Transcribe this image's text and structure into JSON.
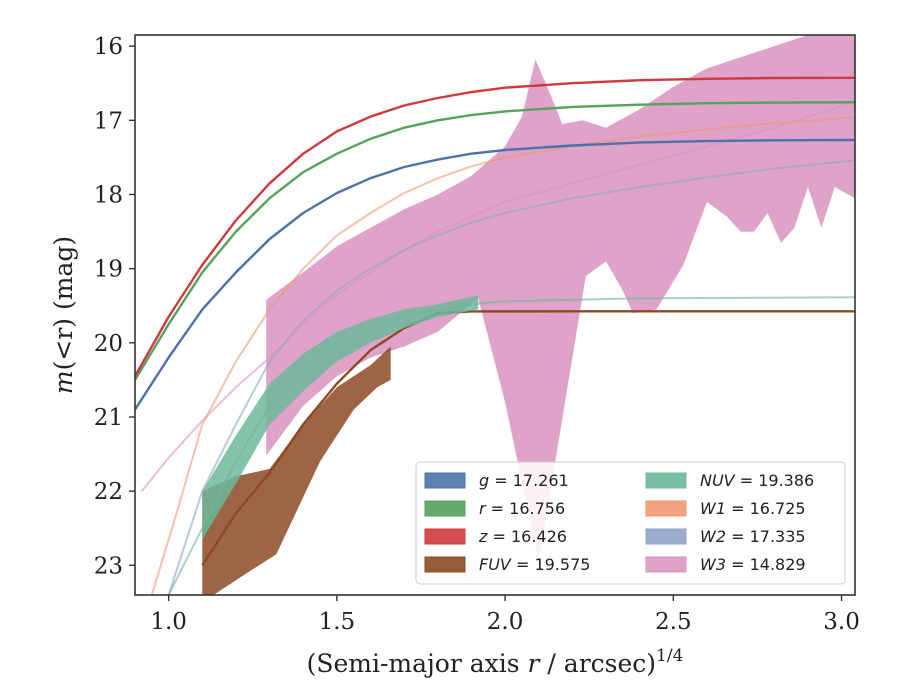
{
  "chart_data": {
    "type": "area",
    "xlabel_main": "(Semi-major axis ",
    "xlabel_var": "r",
    "xlabel_unit": " / arcsec)",
    "xlabel_exp": "1/4",
    "ylabel_main": "m",
    "ylabel_args": "(<r)",
    "ylabel_unit": " (mag)",
    "xlim": [
      0.9,
      3.04
    ],
    "ylim": [
      23.4,
      15.85
    ],
    "y_inverted": true,
    "xticks": [
      1.0,
      1.5,
      2.0,
      2.5,
      3.0
    ],
    "xtick_labels": [
      "1.0",
      "1.5",
      "2.0",
      "2.5",
      "3.0"
    ],
    "yticks": [
      16,
      17,
      18,
      19,
      20,
      21,
      22,
      23
    ],
    "ytick_labels": [
      "16",
      "17",
      "18",
      "19",
      "20",
      "21",
      "22",
      "23"
    ],
    "grid": false,
    "legend_position": "lower-right",
    "series": [
      {
        "name": "g = 17.261",
        "band": "g",
        "mag": "17.261",
        "color": "#4c72a8",
        "curve": [
          [
            0.9,
            20.9
          ],
          [
            1.0,
            20.2
          ],
          [
            1.1,
            19.55
          ],
          [
            1.2,
            19.05
          ],
          [
            1.3,
            18.6
          ],
          [
            1.4,
            18.25
          ],
          [
            1.5,
            17.98
          ],
          [
            1.6,
            17.78
          ],
          [
            1.7,
            17.63
          ],
          [
            1.8,
            17.53
          ],
          [
            1.9,
            17.45
          ],
          [
            2.0,
            17.4
          ],
          [
            2.2,
            17.34
          ],
          [
            2.4,
            17.3
          ],
          [
            2.6,
            17.28
          ],
          [
            2.8,
            17.27
          ],
          [
            3.04,
            17.265
          ]
        ]
      },
      {
        "name": "r = 16.756",
        "band": "r",
        "mag": "16.756",
        "color": "#55a25c",
        "curve": [
          [
            0.9,
            20.5
          ],
          [
            1.0,
            19.75
          ],
          [
            1.1,
            19.05
          ],
          [
            1.2,
            18.5
          ],
          [
            1.3,
            18.05
          ],
          [
            1.4,
            17.7
          ],
          [
            1.5,
            17.45
          ],
          [
            1.6,
            17.25
          ],
          [
            1.7,
            17.1
          ],
          [
            1.8,
            17.0
          ],
          [
            1.9,
            16.93
          ],
          [
            2.0,
            16.88
          ],
          [
            2.2,
            16.82
          ],
          [
            2.4,
            16.79
          ],
          [
            2.6,
            16.77
          ],
          [
            2.8,
            16.762
          ],
          [
            3.04,
            16.758
          ]
        ]
      },
      {
        "name": "z = 16.426",
        "band": "z",
        "mag": "16.426",
        "color": "#d03a3e",
        "curve": [
          [
            0.9,
            20.45
          ],
          [
            1.0,
            19.65
          ],
          [
            1.1,
            18.95
          ],
          [
            1.2,
            18.35
          ],
          [
            1.3,
            17.85
          ],
          [
            1.4,
            17.45
          ],
          [
            1.5,
            17.15
          ],
          [
            1.6,
            16.95
          ],
          [
            1.7,
            16.8
          ],
          [
            1.8,
            16.7
          ],
          [
            1.9,
            16.62
          ],
          [
            2.0,
            16.56
          ],
          [
            2.2,
            16.5
          ],
          [
            2.4,
            16.46
          ],
          [
            2.6,
            16.44
          ],
          [
            2.8,
            16.43
          ],
          [
            3.04,
            16.427
          ]
        ]
      },
      {
        "name": "FUV = 19.575",
        "band": "FUV",
        "mag": "19.575",
        "color": "#8c4a22",
        "curve": [
          [
            1.1,
            23.0
          ],
          [
            1.2,
            22.3
          ],
          [
            1.3,
            21.75
          ],
          [
            1.4,
            21.1
          ],
          [
            1.5,
            20.55
          ],
          [
            1.6,
            20.1
          ],
          [
            1.7,
            19.8
          ],
          [
            1.8,
            19.6
          ],
          [
            1.9,
            19.577
          ],
          [
            2.2,
            19.575
          ],
          [
            3.04,
            19.575
          ]
        ],
        "band_upper": [
          [
            1.1,
            22.0
          ],
          [
            1.2,
            21.8
          ],
          [
            1.3,
            21.7
          ],
          [
            1.4,
            21.1
          ],
          [
            1.5,
            20.6
          ],
          [
            1.6,
            20.3
          ],
          [
            1.66,
            20.05
          ]
        ],
        "band_lower": [
          [
            1.1,
            23.5
          ],
          [
            1.2,
            23.2
          ],
          [
            1.32,
            22.85
          ],
          [
            1.45,
            21.6
          ],
          [
            1.55,
            20.9
          ],
          [
            1.62,
            20.6
          ],
          [
            1.66,
            20.5
          ]
        ]
      },
      {
        "name": "NUV = 19.386",
        "band": "NUV",
        "mag": "19.386",
        "color": "#6cb89a",
        "curve": [
          [
            1.0,
            23.4
          ],
          [
            1.1,
            22.5
          ],
          [
            1.2,
            21.6
          ],
          [
            1.3,
            20.85
          ],
          [
            1.4,
            20.4
          ],
          [
            1.5,
            20.0
          ],
          [
            1.6,
            19.8
          ],
          [
            1.7,
            19.65
          ],
          [
            1.8,
            19.55
          ],
          [
            1.9,
            19.48
          ],
          [
            2.0,
            19.44
          ],
          [
            2.4,
            19.4
          ],
          [
            3.04,
            19.386
          ]
        ],
        "band_upper": [
          [
            1.1,
            22.0
          ],
          [
            1.2,
            21.25
          ],
          [
            1.3,
            20.55
          ],
          [
            1.4,
            20.15
          ],
          [
            1.5,
            19.85
          ],
          [
            1.6,
            19.68
          ],
          [
            1.7,
            19.55
          ],
          [
            1.8,
            19.48
          ],
          [
            1.92,
            19.36
          ]
        ],
        "band_lower": [
          [
            1.1,
            22.65
          ],
          [
            1.2,
            21.9
          ],
          [
            1.3,
            21.1
          ],
          [
            1.4,
            20.65
          ],
          [
            1.5,
            20.25
          ],
          [
            1.6,
            20.0
          ],
          [
            1.7,
            19.8
          ],
          [
            1.8,
            19.65
          ],
          [
            1.92,
            19.55
          ]
        ]
      },
      {
        "name": "W1 = 16.725",
        "band": "W1",
        "mag": "16.725",
        "color": "#ef9870",
        "curve": [
          [
            0.95,
            23.4
          ],
          [
            1.03,
            22.2
          ],
          [
            1.1,
            21.1
          ],
          [
            1.2,
            20.25
          ],
          [
            1.3,
            19.55
          ],
          [
            1.4,
            19.0
          ],
          [
            1.5,
            18.55
          ],
          [
            1.6,
            18.25
          ],
          [
            1.7,
            17.98
          ],
          [
            1.8,
            17.78
          ],
          [
            1.9,
            17.62
          ],
          [
            2.0,
            17.5
          ],
          [
            2.2,
            17.35
          ],
          [
            2.4,
            17.22
          ],
          [
            2.6,
            17.12
          ],
          [
            2.8,
            17.04
          ],
          [
            3.04,
            16.96
          ]
        ]
      },
      {
        "name": "W2 = 17.335",
        "band": "W2",
        "mag": "17.335",
        "color": "#8fa4c8",
        "curve": [
          [
            1.0,
            23.4
          ],
          [
            1.1,
            22.0
          ],
          [
            1.2,
            21.1
          ],
          [
            1.3,
            20.25
          ],
          [
            1.4,
            19.7
          ],
          [
            1.5,
            19.3
          ],
          [
            1.6,
            19.0
          ],
          [
            1.7,
            18.75
          ],
          [
            1.8,
            18.55
          ],
          [
            1.9,
            18.38
          ],
          [
            2.0,
            18.25
          ],
          [
            2.2,
            18.05
          ],
          [
            2.4,
            17.9
          ],
          [
            2.6,
            17.77
          ],
          [
            2.8,
            17.65
          ],
          [
            3.04,
            17.54
          ]
        ]
      },
      {
        "name": "W3 = 14.829",
        "band": "W3",
        "mag": "14.829",
        "color": "#d992c0",
        "curve": [
          [
            0.92,
            22.0
          ],
          [
            1.0,
            21.55
          ],
          [
            1.1,
            21.05
          ],
          [
            1.2,
            20.6
          ],
          [
            1.3,
            20.2
          ],
          [
            1.4,
            19.75
          ],
          [
            1.5,
            19.35
          ],
          [
            1.6,
            19.05
          ],
          [
            1.7,
            18.75
          ],
          [
            1.8,
            18.5
          ],
          [
            1.9,
            18.3
          ],
          [
            2.0,
            18.1
          ],
          [
            2.2,
            17.85
          ],
          [
            2.4,
            17.6
          ],
          [
            2.6,
            17.35
          ],
          [
            2.8,
            17.1
          ],
          [
            3.04,
            16.75
          ]
        ],
        "band_upper": [
          [
            1.29,
            19.42
          ],
          [
            1.4,
            19.05
          ],
          [
            1.5,
            18.7
          ],
          [
            1.6,
            18.45
          ],
          [
            1.7,
            18.2
          ],
          [
            1.8,
            18.0
          ],
          [
            1.9,
            17.75
          ],
          [
            2.0,
            17.35
          ],
          [
            2.05,
            16.95
          ],
          [
            2.09,
            16.18
          ],
          [
            2.13,
            16.6
          ],
          [
            2.17,
            17.05
          ],
          [
            2.23,
            17.0
          ],
          [
            2.3,
            17.1
          ],
          [
            2.4,
            16.85
          ],
          [
            2.5,
            16.55
          ],
          [
            2.6,
            16.3
          ],
          [
            2.7,
            16.15
          ],
          [
            2.8,
            16.0
          ],
          [
            2.9,
            15.85
          ],
          [
            3.04,
            15.85
          ]
        ],
        "band_lower": [
          [
            1.29,
            21.52
          ],
          [
            1.4,
            20.85
          ],
          [
            1.5,
            20.45
          ],
          [
            1.6,
            20.2
          ],
          [
            1.7,
            20.05
          ],
          [
            1.8,
            19.85
          ],
          [
            1.88,
            19.55
          ],
          [
            1.92,
            19.4
          ],
          [
            2.0,
            20.8
          ],
          [
            2.1,
            22.95
          ],
          [
            2.16,
            21.3
          ],
          [
            2.24,
            19.1
          ],
          [
            2.3,
            18.9
          ],
          [
            2.35,
            19.3
          ],
          [
            2.38,
            19.6
          ],
          [
            2.45,
            19.55
          ],
          [
            2.53,
            18.95
          ],
          [
            2.6,
            18.1
          ],
          [
            2.66,
            18.3
          ],
          [
            2.7,
            18.5
          ],
          [
            2.74,
            18.5
          ],
          [
            2.78,
            18.25
          ],
          [
            2.82,
            18.65
          ],
          [
            2.86,
            18.45
          ],
          [
            2.9,
            17.9
          ],
          [
            2.94,
            18.45
          ],
          [
            2.98,
            17.9
          ],
          [
            3.04,
            18.05
          ]
        ]
      }
    ]
  }
}
